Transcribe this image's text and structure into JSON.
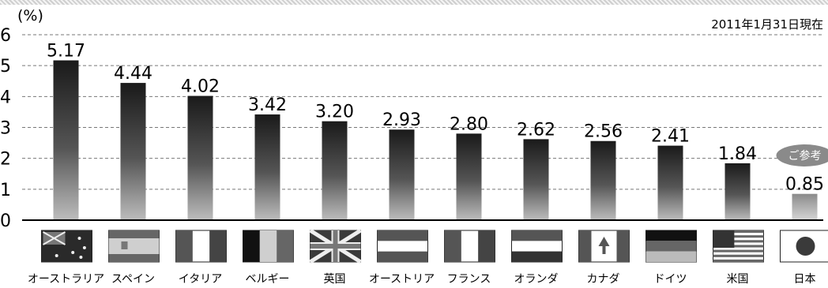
{
  "chart_data": {
    "type": "bar",
    "unit_label": "(%)",
    "date_note": "2011年1月31日現在",
    "ylim": [
      0,
      6
    ],
    "yticks": [
      "0",
      "1",
      "2",
      "3",
      "4",
      "5",
      "6"
    ],
    "grid": "horizontal dashed",
    "categories": [
      "オーストラリア",
      "スペイン",
      "イタリア",
      "ベルギー",
      "英国",
      "オーストリア",
      "フランス",
      "オランダ",
      "カナダ",
      "ドイツ",
      "米国",
      "日本"
    ],
    "values": [
      5.17,
      4.44,
      4.02,
      3.42,
      3.2,
      2.93,
      2.8,
      2.62,
      2.56,
      2.41,
      1.84,
      0.85
    ],
    "value_labels": [
      "5.17",
      "4.44",
      "4.02",
      "3.42",
      "3.20",
      "2.93",
      "2.80",
      "2.62",
      "2.56",
      "2.41",
      "1.84",
      "0.85"
    ],
    "reference_badge": "ご参考",
    "flags": [
      "australia-flag",
      "spain-flag",
      "italy-flag",
      "belgium-flag",
      "uk-flag",
      "austria-flag",
      "france-flag",
      "netherlands-flag",
      "canada-flag",
      "germany-flag",
      "usa-flag",
      "japan-flag"
    ]
  }
}
